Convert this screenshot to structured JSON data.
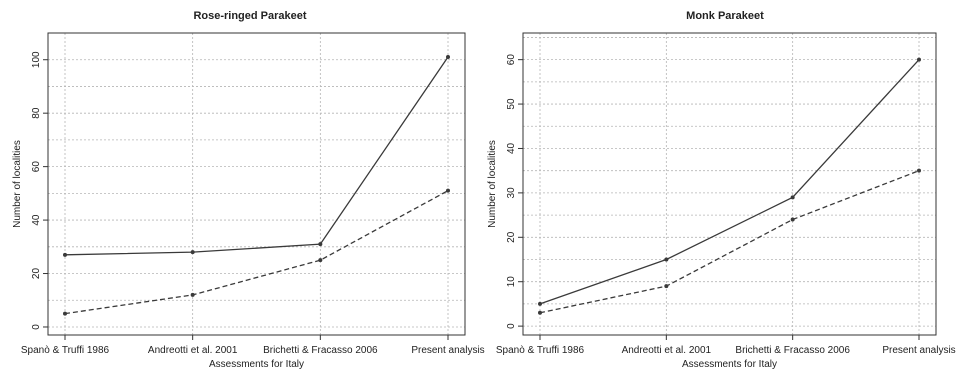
{
  "chart_data": [
    {
      "type": "line",
      "title": "Rose-ringed Parakeet",
      "xlabel": "Assessments for Italy",
      "ylabel": "Number of localities",
      "categories": [
        "Spanò & Truffi 1986",
        "Andreotti et al. 2001",
        "Brichetti & Fracasso 2006",
        "Present analysis"
      ],
      "series": [
        {
          "values": [
            27,
            28,
            31,
            101
          ],
          "style": "solid",
          "color": "#3a3a3a"
        },
        {
          "values": [
            5,
            12,
            25,
            51
          ],
          "style": "dashed",
          "color": "#3a3a3a"
        }
      ],
      "yticks": [
        0,
        20,
        40,
        60,
        80,
        100
      ],
      "ylim": [
        -3,
        110
      ],
      "grid": true
    },
    {
      "type": "line",
      "title": "Monk Parakeet",
      "xlabel": "Assessments for Italy",
      "ylabel": "Number of localities",
      "categories": [
        "Spanò & Truffi 1986",
        "Andreotti et al. 2001",
        "Brichetti & Fracasso 2006",
        "Present analysis"
      ],
      "series": [
        {
          "values": [
            5,
            15,
            29,
            60
          ],
          "style": "solid",
          "color": "#3a3a3a"
        },
        {
          "values": [
            3,
            9,
            24,
            35
          ],
          "style": "dashed",
          "color": "#3a3a3a"
        }
      ],
      "yticks": [
        0,
        10,
        20,
        30,
        40,
        50,
        60
      ],
      "ylim": [
        -2,
        66
      ],
      "grid": true
    }
  ]
}
